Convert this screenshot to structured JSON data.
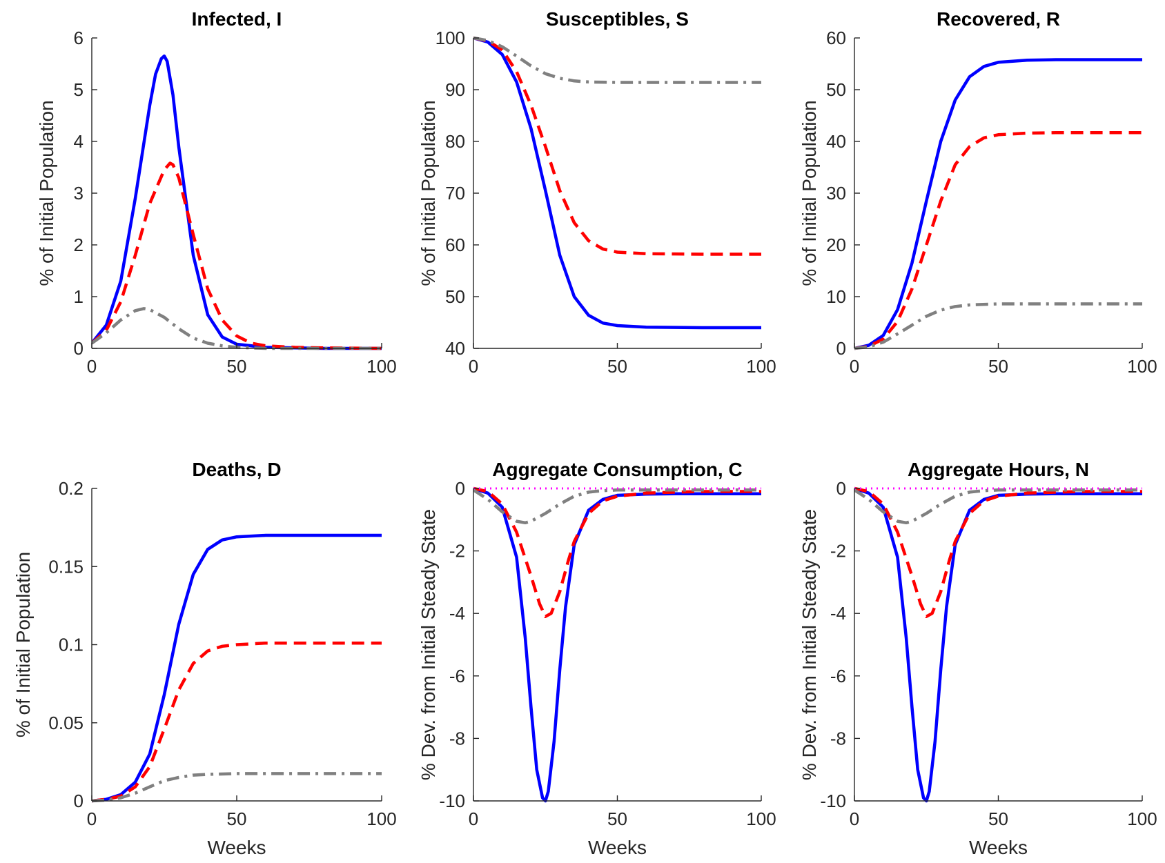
{
  "chart_data": [
    {
      "type": "line",
      "title": "Infected, I",
      "xlabel": "",
      "ylabel": "% of Initial Population",
      "xlim": [
        0,
        100
      ],
      "ylim": [
        0,
        6
      ],
      "xticks": [
        "0",
        "50",
        "100"
      ],
      "yticks": [
        "0",
        "1",
        "2",
        "3",
        "4",
        "5",
        "6"
      ],
      "series": [
        {
          "color": "#0000ff",
          "style": "solid",
          "x": [
            0,
            5,
            10,
            15,
            20,
            22,
            24,
            25,
            26,
            28,
            30,
            35,
            40,
            45,
            50,
            60,
            70,
            80,
            100
          ],
          "y": [
            0.1,
            0.45,
            1.3,
            2.9,
            4.7,
            5.3,
            5.6,
            5.65,
            5.55,
            4.9,
            3.9,
            1.8,
            0.65,
            0.22,
            0.08,
            0.02,
            0.01,
            0.0,
            0.0
          ]
        },
        {
          "color": "#ff0000",
          "style": "dashed",
          "x": [
            0,
            5,
            10,
            15,
            20,
            25,
            27,
            28,
            30,
            35,
            40,
            45,
            50,
            55,
            60,
            70,
            80,
            100
          ],
          "y": [
            0.1,
            0.35,
            0.9,
            1.8,
            2.8,
            3.45,
            3.58,
            3.55,
            3.3,
            2.2,
            1.15,
            0.55,
            0.24,
            0.1,
            0.05,
            0.02,
            0.01,
            0.0
          ]
        },
        {
          "color": "#808080",
          "style": "dashdot",
          "x": [
            0,
            5,
            10,
            15,
            18,
            20,
            25,
            30,
            35,
            40,
            45,
            50,
            55,
            60,
            70,
            100
          ],
          "y": [
            0.1,
            0.3,
            0.55,
            0.73,
            0.77,
            0.75,
            0.6,
            0.38,
            0.2,
            0.1,
            0.05,
            0.02,
            0.01,
            0.0,
            0.0,
            0.0
          ]
        }
      ]
    },
    {
      "type": "line",
      "title": "Susceptibles, S",
      "xlabel": "",
      "ylabel": "% of Initial Population",
      "xlim": [
        0,
        100
      ],
      "ylim": [
        40,
        100
      ],
      "xticks": [
        "0",
        "50",
        "100"
      ],
      "yticks": [
        "40",
        "50",
        "60",
        "70",
        "80",
        "90",
        "100"
      ],
      "series": [
        {
          "color": "#0000ff",
          "style": "solid",
          "x": [
            0,
            5,
            10,
            15,
            20,
            25,
            30,
            35,
            40,
            45,
            50,
            60,
            70,
            80,
            100
          ],
          "y": [
            100,
            99.2,
            96.8,
            91.5,
            82.5,
            70.5,
            58,
            50,
            46.4,
            44.9,
            44.4,
            44.1,
            44.05,
            44.0,
            44.0
          ]
        },
        {
          "color": "#ff0000",
          "style": "dashed",
          "x": [
            0,
            5,
            10,
            15,
            20,
            25,
            30,
            35,
            40,
            45,
            50,
            60,
            70,
            80,
            100
          ],
          "y": [
            100,
            99.4,
            97.7,
            93.5,
            87,
            79,
            70.5,
            64.3,
            60.8,
            59.2,
            58.6,
            58.3,
            58.25,
            58.2,
            58.2
          ]
        },
        {
          "color": "#808080",
          "style": "dashdot",
          "x": [
            0,
            5,
            10,
            15,
            20,
            25,
            30,
            35,
            40,
            50,
            60,
            70,
            100
          ],
          "y": [
            100,
            99.5,
            98.3,
            96.5,
            94.6,
            93.1,
            92.2,
            91.7,
            91.5,
            91.4,
            91.4,
            91.4,
            91.4
          ]
        }
      ]
    },
    {
      "type": "line",
      "title": "Recovered, R",
      "xlabel": "",
      "ylabel": "% of Initial Population",
      "xlim": [
        0,
        100
      ],
      "ylim": [
        0,
        60
      ],
      "xticks": [
        "0",
        "50",
        "100"
      ],
      "yticks": [
        "0",
        "10",
        "20",
        "30",
        "40",
        "50",
        "60"
      ],
      "series": [
        {
          "color": "#0000ff",
          "style": "solid",
          "x": [
            0,
            5,
            10,
            15,
            20,
            25,
            30,
            35,
            40,
            45,
            50,
            60,
            70,
            80,
            100
          ],
          "y": [
            0,
            0.6,
            2.5,
            7.5,
            16.5,
            28.5,
            40,
            48,
            52.5,
            54.5,
            55.3,
            55.7,
            55.8,
            55.8,
            55.8
          ]
        },
        {
          "color": "#ff0000",
          "style": "dashed",
          "x": [
            0,
            5,
            10,
            15,
            20,
            25,
            30,
            35,
            40,
            45,
            50,
            60,
            70,
            80,
            100
          ],
          "y": [
            0,
            0.4,
            1.8,
            5.2,
            11.5,
            20,
            28.5,
            35.5,
            39,
            40.7,
            41.3,
            41.6,
            41.7,
            41.7,
            41.7
          ]
        },
        {
          "color": "#808080",
          "style": "dashdot",
          "x": [
            0,
            5,
            10,
            15,
            20,
            25,
            30,
            35,
            40,
            50,
            60,
            70,
            100
          ],
          "y": [
            0,
            0.3,
            1.2,
            2.8,
            4.5,
            6.2,
            7.4,
            8.1,
            8.4,
            8.6,
            8.6,
            8.6,
            8.6
          ]
        }
      ]
    },
    {
      "type": "line",
      "title": "Deaths, D",
      "xlabel": "Weeks",
      "ylabel": "% of Initial Population",
      "xlim": [
        0,
        100
      ],
      "ylim": [
        0,
        0.2
      ],
      "xticks": [
        "0",
        "50",
        "100"
      ],
      "yticks": [
        "0",
        "0.05",
        "0.1",
        "0.15",
        "0.2"
      ],
      "series": [
        {
          "color": "#0000ff",
          "style": "solid",
          "x": [
            0,
            5,
            10,
            15,
            20,
            25,
            30,
            35,
            40,
            45,
            50,
            60,
            70,
            80,
            100
          ],
          "y": [
            0,
            0.001,
            0.004,
            0.012,
            0.03,
            0.068,
            0.113,
            0.145,
            0.161,
            0.167,
            0.169,
            0.17,
            0.17,
            0.17,
            0.17
          ]
        },
        {
          "color": "#ff0000",
          "style": "dashed",
          "x": [
            0,
            5,
            10,
            15,
            20,
            25,
            30,
            35,
            40,
            45,
            50,
            60,
            70,
            80,
            100
          ],
          "y": [
            0,
            0.001,
            0.003,
            0.009,
            0.022,
            0.046,
            0.071,
            0.088,
            0.096,
            0.099,
            0.1,
            0.101,
            0.101,
            0.101,
            0.101
          ]
        },
        {
          "color": "#808080",
          "style": "dashdot",
          "x": [
            0,
            5,
            10,
            15,
            20,
            25,
            30,
            35,
            40,
            50,
            60,
            70,
            100
          ],
          "y": [
            0,
            0.0005,
            0.002,
            0.005,
            0.009,
            0.013,
            0.015,
            0.0165,
            0.017,
            0.0175,
            0.0175,
            0.0175,
            0.0175
          ]
        }
      ]
    },
    {
      "type": "line",
      "title": "Aggregate Consumption, C",
      "xlabel": "Weeks",
      "ylabel": "% Dev. from Initial Steady State",
      "xlim": [
        0,
        100
      ],
      "ylim": [
        -10,
        0
      ],
      "xticks": [
        "0",
        "50",
        "100"
      ],
      "yticks": [
        "-10",
        "-8",
        "-6",
        "-4",
        "-2",
        "0"
      ],
      "series": [
        {
          "color": "#0000ff",
          "style": "solid",
          "x": [
            0,
            5,
            10,
            15,
            18,
            20,
            22,
            24,
            25,
            26,
            28,
            30,
            32,
            35,
            40,
            45,
            50,
            60,
            70,
            80,
            100
          ],
          "y": [
            0,
            -0.15,
            -0.6,
            -2.2,
            -4.8,
            -7,
            -9,
            -9.9,
            -10,
            -9.7,
            -8.1,
            -5.8,
            -3.8,
            -1.8,
            -0.7,
            -0.35,
            -0.22,
            -0.18,
            -0.17,
            -0.17,
            -0.17
          ]
        },
        {
          "color": "#ff0000",
          "style": "dashed",
          "x": [
            0,
            5,
            10,
            15,
            20,
            23,
            25,
            27,
            30,
            33,
            35,
            40,
            45,
            50,
            60,
            70,
            80,
            100
          ],
          "y": [
            0,
            -0.1,
            -0.5,
            -1.4,
            -2.8,
            -3.7,
            -4.1,
            -4.0,
            -3.3,
            -2.3,
            -1.7,
            -0.8,
            -0.4,
            -0.25,
            -0.15,
            -0.12,
            -0.1,
            -0.1
          ]
        },
        {
          "color": "#808080",
          "style": "dashdot",
          "x": [
            0,
            5,
            10,
            15,
            18,
            20,
            25,
            30,
            35,
            40,
            45,
            50,
            60,
            70,
            100
          ],
          "y": [
            -0.05,
            -0.35,
            -0.75,
            -1.05,
            -1.1,
            -1.05,
            -0.8,
            -0.5,
            -0.25,
            -0.12,
            -0.07,
            -0.05,
            -0.05,
            -0.05,
            -0.05
          ]
        },
        {
          "color": "#ff00ff",
          "style": "dotted",
          "x": [
            0,
            100
          ],
          "y": [
            0,
            0
          ]
        }
      ]
    },
    {
      "type": "line",
      "title": "Aggregate Hours, N",
      "xlabel": "Weeks",
      "ylabel": "% Dev. from Initial Steady State",
      "xlim": [
        0,
        100
      ],
      "ylim": [
        -10,
        0
      ],
      "xticks": [
        "0",
        "50",
        "100"
      ],
      "yticks": [
        "-10",
        "-8",
        "-6",
        "-4",
        "-2",
        "0"
      ],
      "series": [
        {
          "color": "#0000ff",
          "style": "solid",
          "x": [
            0,
            5,
            10,
            15,
            18,
            20,
            22,
            24,
            25,
            26,
            28,
            30,
            32,
            35,
            40,
            45,
            50,
            60,
            70,
            80,
            100
          ],
          "y": [
            0,
            -0.15,
            -0.6,
            -2.2,
            -4.8,
            -7,
            -9,
            -9.9,
            -10,
            -9.7,
            -8.1,
            -5.8,
            -3.8,
            -1.8,
            -0.7,
            -0.35,
            -0.22,
            -0.18,
            -0.17,
            -0.17,
            -0.17
          ]
        },
        {
          "color": "#ff0000",
          "style": "dashed",
          "x": [
            0,
            5,
            10,
            15,
            20,
            23,
            25,
            27,
            30,
            33,
            35,
            40,
            45,
            50,
            60,
            70,
            80,
            100
          ],
          "y": [
            0,
            -0.1,
            -0.5,
            -1.4,
            -2.8,
            -3.7,
            -4.1,
            -4.0,
            -3.3,
            -2.3,
            -1.7,
            -0.8,
            -0.4,
            -0.25,
            -0.15,
            -0.12,
            -0.1,
            -0.1
          ]
        },
        {
          "color": "#808080",
          "style": "dashdot",
          "x": [
            0,
            5,
            10,
            15,
            18,
            20,
            25,
            30,
            35,
            40,
            45,
            50,
            60,
            70,
            100
          ],
          "y": [
            -0.05,
            -0.35,
            -0.75,
            -1.05,
            -1.1,
            -1.05,
            -0.8,
            -0.5,
            -0.25,
            -0.12,
            -0.07,
            -0.05,
            -0.05,
            -0.05,
            -0.05
          ]
        },
        {
          "color": "#ff00ff",
          "style": "dotted",
          "x": [
            0,
            100
          ],
          "y": [
            0,
            0
          ]
        }
      ]
    }
  ]
}
